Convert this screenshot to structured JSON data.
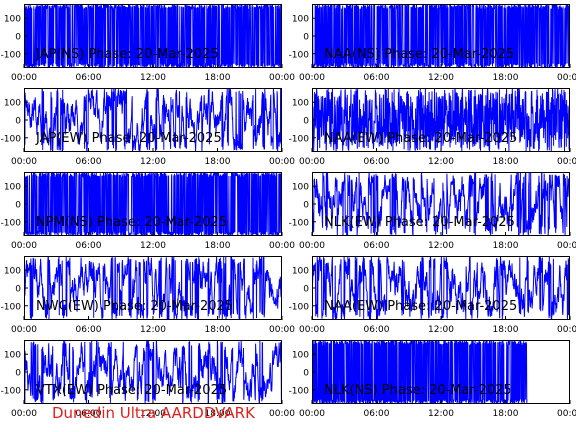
{
  "colors": {
    "trace": "#0000ff",
    "panel_title": "#000000",
    "caption": "#e0201c",
    "frame": "#000000"
  },
  "footer": {
    "caption": "Dunedin Ultra AARDDVARK"
  },
  "chart_data": [
    {
      "type": "line",
      "title": "JAP(NS) Phase: 20-Mar-2025",
      "x_ticks": [
        "00:00",
        "06:00",
        "12:00",
        "18:00",
        "00:00"
      ],
      "y_ticks": [
        "100",
        "0",
        "-100"
      ],
      "xlim_hours": [
        0,
        24
      ],
      "ylim": [
        -180,
        180
      ],
      "pattern": "saturated",
      "gap_after_hour": null,
      "seed": 11
    },
    {
      "type": "line",
      "title": "NAA(NS) Phase: 20-Mar-2025",
      "x_ticks": [
        "00:00",
        "06:00",
        "12:00",
        "18:00",
        "00:00"
      ],
      "y_ticks": [
        "100",
        "0",
        "-100"
      ],
      "xlim_hours": [
        0,
        24
      ],
      "ylim": [
        -180,
        180
      ],
      "pattern": "saturated",
      "gap_after_hour": null,
      "seed": 23
    },
    {
      "type": "line",
      "title": "JAP(EW) Phase: 20-Mar-2025",
      "x_ticks": [
        "00:00",
        "06:00",
        "12:00",
        "18:00",
        "00:00"
      ],
      "y_ticks": [
        "100",
        "0",
        "-100"
      ],
      "xlim_hours": [
        0,
        24
      ],
      "ylim": [
        -180,
        180
      ],
      "pattern": "wrapping",
      "gap_after_hour": null,
      "seed": 37
    },
    {
      "type": "line",
      "title": "NAA(EW) Phase: 20-Mar-2025",
      "x_ticks": [
        "00:00",
        "06:00",
        "12:00",
        "18:00",
        "00:00"
      ],
      "y_ticks": [
        "100",
        "0",
        "-100"
      ],
      "xlim_hours": [
        0,
        24
      ],
      "ylim": [
        -180,
        180
      ],
      "pattern": "dense",
      "gap_after_hour": null,
      "seed": 41
    },
    {
      "type": "line",
      "title": "NPM(NS) Phase: 20-Mar-2025",
      "x_ticks": [
        "00:00",
        "06:00",
        "12:00",
        "18:00",
        "00:00"
      ],
      "y_ticks": [
        "100",
        "0",
        "-100"
      ],
      "xlim_hours": [
        0,
        24
      ],
      "ylim": [
        -180,
        180
      ],
      "pattern": "saturated",
      "gap_after_hour": null,
      "seed": 53
    },
    {
      "type": "line",
      "title": "NLK(EW) Phase: 20-Mar-2025",
      "x_ticks": [
        "00:00",
        "06:00",
        "12:00",
        "18:00",
        "00:00"
      ],
      "y_ticks": [
        "100",
        "0",
        "-100"
      ],
      "xlim_hours": [
        0,
        24
      ],
      "ylim": [
        -180,
        180
      ],
      "pattern": "wrapping",
      "gap_after_hour": null,
      "seed": 67
    },
    {
      "type": "line",
      "title": "NWC(EW) Phase: 20-Mar-2025",
      "x_ticks": [
        "00:00",
        "06:00",
        "12:00",
        "18:00",
        "00:00"
      ],
      "y_ticks": [
        "100",
        "0",
        "-100"
      ],
      "xlim_hours": [
        0,
        24
      ],
      "ylim": [
        -180,
        180
      ],
      "pattern": "wrapping",
      "gap_after_hour": null,
      "seed": 71
    },
    {
      "type": "line",
      "title": "NAA(EW) Phase: 20-Mar-2025",
      "x_ticks": [
        "00:00",
        "06:00",
        "12:00",
        "18:00",
        "00:00"
      ],
      "y_ticks": [
        "100",
        "0",
        "-100"
      ],
      "xlim_hours": [
        0,
        24
      ],
      "ylim": [
        -180,
        180
      ],
      "pattern": "wrapping",
      "gap_after_hour": null,
      "seed": 83
    },
    {
      "type": "line",
      "title": "VTX(EW) Phase: 20-Mar-2025",
      "x_ticks": [
        "00:00",
        "06:00",
        "12:00",
        "18:00",
        "00:00"
      ],
      "y_ticks": [
        "100",
        "0",
        "-100"
      ],
      "xlim_hours": [
        0,
        24
      ],
      "ylim": [
        -180,
        180
      ],
      "pattern": "wrapping",
      "gap_after_hour": null,
      "seed": 97
    },
    {
      "type": "line",
      "title": "NLK(NS) Phase: 20-Mar-2025",
      "x_ticks": [
        "00:00",
        "06:00",
        "12:00",
        "18:00",
        "00:00"
      ],
      "y_ticks": [
        "100",
        "0",
        "-100"
      ],
      "xlim_hours": [
        0,
        24
      ],
      "ylim": [
        -180,
        180
      ],
      "pattern": "saturated",
      "gap_after_hour": 20,
      "seed": 101
    }
  ]
}
